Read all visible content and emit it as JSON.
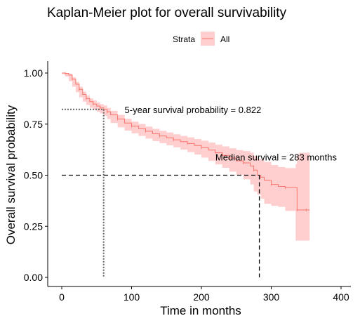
{
  "chart_data": {
    "type": "line",
    "title": "Kaplan-Meier plot for overall survivability",
    "xlabel": "Time in months",
    "ylabel": "Overall survival probability",
    "xlim": [
      0,
      400
    ],
    "ylim": [
      0,
      1
    ],
    "x_ticks": [
      "0",
      "100",
      "200",
      "300",
      "400"
    ],
    "y_ticks": [
      "0.00",
      "0.25",
      "0.50",
      "0.75",
      "1.00"
    ],
    "grid": false,
    "legend": {
      "title": "Strata",
      "position": "top",
      "entries": [
        "All"
      ]
    },
    "colors": {
      "line": "#f8766d",
      "band": "#ffbfbf",
      "guide_dotted": "#666666",
      "guide_dashed": "#000000"
    },
    "series": [
      {
        "name": "All",
        "x": [
          0,
          5,
          10,
          15,
          20,
          25,
          30,
          35,
          40,
          45,
          50,
          55,
          60,
          65,
          70,
          80,
          90,
          100,
          110,
          120,
          130,
          140,
          150,
          160,
          170,
          180,
          190,
          200,
          210,
          220,
          230,
          240,
          250,
          260,
          270,
          275,
          280,
          285,
          290,
          300,
          310,
          320,
          335,
          337,
          340,
          350,
          355
        ],
        "y": [
          1.0,
          0.998,
          0.99,
          0.97,
          0.945,
          0.92,
          0.895,
          0.875,
          0.86,
          0.848,
          0.838,
          0.829,
          0.822,
          0.81,
          0.795,
          0.775,
          0.755,
          0.74,
          0.728,
          0.715,
          0.703,
          0.692,
          0.683,
          0.673,
          0.664,
          0.655,
          0.645,
          0.635,
          0.623,
          0.61,
          0.597,
          0.584,
          0.57,
          0.56,
          0.545,
          0.525,
          0.5,
          0.49,
          0.475,
          0.455,
          0.445,
          0.44,
          0.44,
          0.33,
          0.33,
          0.33,
          0.33
        ],
        "lower": [
          1.0,
          0.995,
          0.983,
          0.96,
          0.933,
          0.906,
          0.881,
          0.86,
          0.844,
          0.83,
          0.82,
          0.81,
          0.803,
          0.791,
          0.775,
          0.755,
          0.734,
          0.718,
          0.705,
          0.692,
          0.679,
          0.667,
          0.657,
          0.646,
          0.636,
          0.625,
          0.613,
          0.601,
          0.586,
          0.57,
          0.553,
          0.536,
          0.517,
          0.502,
          0.48,
          0.455,
          0.42,
          0.405,
          0.385,
          0.36,
          0.35,
          0.345,
          0.325,
          0.18,
          0.18,
          0.18,
          0.18
        ],
        "upper": [
          1.0,
          1.0,
          0.996,
          0.98,
          0.957,
          0.933,
          0.909,
          0.89,
          0.876,
          0.866,
          0.856,
          0.848,
          0.841,
          0.829,
          0.815,
          0.795,
          0.776,
          0.762,
          0.751,
          0.738,
          0.727,
          0.717,
          0.709,
          0.7,
          0.692,
          0.685,
          0.677,
          0.669,
          0.66,
          0.65,
          0.641,
          0.632,
          0.623,
          0.618,
          0.61,
          0.595,
          0.58,
          0.575,
          0.565,
          0.55,
          0.54,
          0.535,
          0.555,
          0.6,
          0.61,
          0.61,
          0.61
        ]
      }
    ],
    "annotations": {
      "five_year": {
        "text": "5-year survival probability = 0.822",
        "x": 60,
        "y": 0.822,
        "label_x": 90
      },
      "median": {
        "text": "Median survival = 283 months",
        "x": 283,
        "y": 0.5,
        "label_x": 220
      }
    }
  }
}
